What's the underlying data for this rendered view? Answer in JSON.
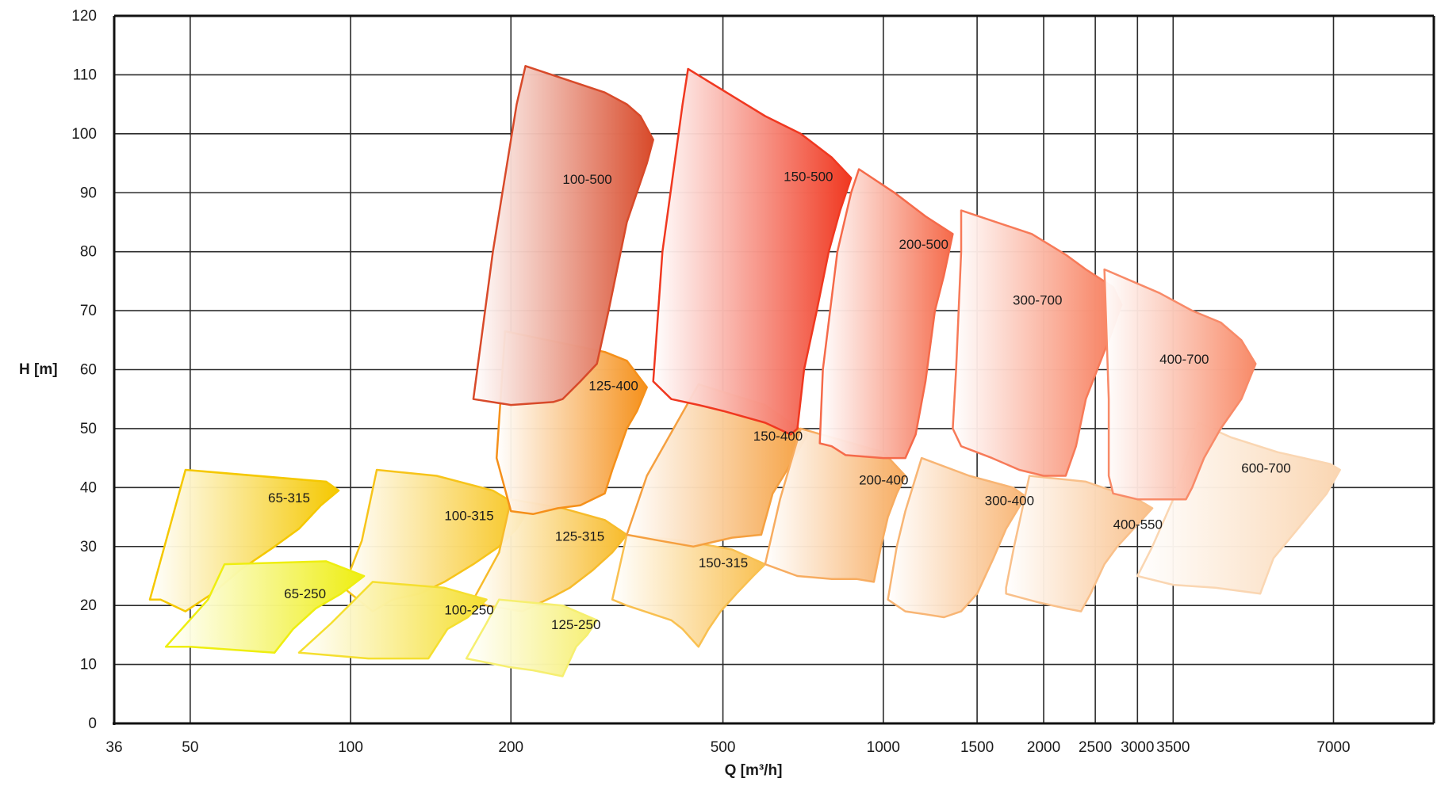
{
  "chart_data": {
    "type": "area",
    "xlabel": "Q [m³/h]",
    "ylabel": "H [m]",
    "x_scale": "log",
    "xlim": [
      36,
      10800
    ],
    "ylim": [
      0,
      120
    ],
    "x_ticks": [
      36,
      50,
      100,
      200,
      500,
      1000,
      1500,
      2000,
      2500,
      3000,
      3500,
      7000
    ],
    "y_ticks": [
      0,
      10,
      20,
      30,
      40,
      50,
      60,
      70,
      80,
      90,
      100,
      110,
      120
    ],
    "grid": true,
    "regions": [
      {
        "name": "65-315",
        "color": "#f5c800",
        "label_at": [
          70,
          37.5
        ],
        "outline": [
          [
            49,
            43
          ],
          [
            90,
            41
          ],
          [
            95,
            39.5
          ],
          [
            88,
            37
          ],
          [
            80,
            33
          ],
          [
            72,
            30
          ],
          [
            62,
            26
          ],
          [
            55,
            22
          ],
          [
            49,
            19
          ],
          [
            44,
            21
          ],
          [
            42,
            21
          ]
        ]
      },
      {
        "name": "100-315",
        "color": "#f7c41a",
        "label_at": [
          150,
          34.5
        ],
        "outline": [
          [
            112,
            43
          ],
          [
            145,
            42
          ],
          [
            185,
            39.5
          ],
          [
            215,
            36
          ],
          [
            205,
            33
          ],
          [
            190,
            30
          ],
          [
            170,
            27
          ],
          [
            150,
            24
          ],
          [
            135,
            22
          ],
          [
            120,
            21
          ],
          [
            110,
            19
          ],
          [
            97,
            23
          ],
          [
            105,
            31
          ]
        ]
      },
      {
        "name": "125-315",
        "color": "#f7bb2a",
        "label_at": [
          242,
          31
        ],
        "outline": [
          [
            200,
            38
          ],
          [
            250,
            36.5
          ],
          [
            300,
            34.5
          ],
          [
            330,
            32
          ],
          [
            310,
            29
          ],
          [
            285,
            26
          ],
          [
            258,
            23
          ],
          [
            240,
            21.5
          ],
          [
            210,
            19
          ],
          [
            180,
            20
          ],
          [
            170,
            21
          ],
          [
            190,
            29
          ]
        ]
      },
      {
        "name": "150-315",
        "color": "#f9c050",
        "label_at": [
          450,
          26.5
        ],
        "outline": [
          [
            330,
            32
          ],
          [
            420,
            31
          ],
          [
            520,
            29.5
          ],
          [
            600,
            27
          ],
          [
            570,
            25
          ],
          [
            530,
            22
          ],
          [
            495,
            19
          ],
          [
            470,
            16
          ],
          [
            450,
            13
          ],
          [
            420,
            16
          ],
          [
            400,
            17.5
          ],
          [
            330,
            20
          ],
          [
            310,
            21
          ]
        ]
      },
      {
        "name": "65-250",
        "color": "#eeee10",
        "label_at": [
          75,
          21.2
        ],
        "outline": [
          [
            58,
            27
          ],
          [
            90,
            27.5
          ],
          [
            106,
            25
          ],
          [
            96,
            22
          ],
          [
            86,
            19.5
          ],
          [
            78,
            16
          ],
          [
            72,
            12
          ],
          [
            60,
            12.5
          ],
          [
            50,
            13
          ],
          [
            45,
            13
          ],
          [
            54,
            21
          ]
        ]
      },
      {
        "name": "100-250",
        "color": "#f5df30",
        "label_at": [
          150,
          18.5
        ],
        "outline": [
          [
            110,
            24
          ],
          [
            150,
            23
          ],
          [
            180,
            21
          ],
          [
            166,
            18
          ],
          [
            152,
            16
          ],
          [
            140,
            11
          ],
          [
            120,
            11
          ],
          [
            108,
            11
          ],
          [
            80,
            12
          ],
          [
            92,
            17
          ]
        ]
      },
      {
        "name": "125-250",
        "color": "#f6ef70",
        "label_at": [
          238,
          16
        ],
        "outline": [
          [
            190,
            21
          ],
          [
            250,
            20
          ],
          [
            290,
            17.5
          ],
          [
            278,
            15
          ],
          [
            265,
            13
          ],
          [
            250,
            8
          ],
          [
            220,
            9
          ],
          [
            200,
            9.5
          ],
          [
            165,
            11
          ],
          [
            180,
            17
          ]
        ]
      },
      {
        "name": "125-400",
        "color": "#f5901a",
        "label_at": [
          280,
          56.5
        ],
        "outline": [
          [
            195,
            66.5
          ],
          [
            300,
            63
          ],
          [
            330,
            61.5
          ],
          [
            360,
            57
          ],
          [
            345,
            53
          ],
          [
            330,
            50
          ],
          [
            310,
            43
          ],
          [
            300,
            39
          ],
          [
            270,
            37
          ],
          [
            245,
            36.5
          ],
          [
            220,
            35.5
          ],
          [
            200,
            36
          ],
          [
            188,
            45
          ]
        ]
      },
      {
        "name": "150-400",
        "color": "#f5a040",
        "label_at": [
          570,
          48
        ],
        "outline": [
          [
            450,
            57.5
          ],
          [
            600,
            54
          ],
          [
            720,
            49
          ],
          [
            700,
            47
          ],
          [
            650,
            42
          ],
          [
            620,
            39
          ],
          [
            590,
            32
          ],
          [
            520,
            31.5
          ],
          [
            440,
            30
          ],
          [
            380,
            31
          ],
          [
            330,
            32
          ],
          [
            360,
            42
          ]
        ]
      },
      {
        "name": "200-400",
        "color": "#f7ac60",
        "label_at": [
          900,
          40.5
        ],
        "outline": [
          [
            700,
            50
          ],
          [
            1000,
            46
          ],
          [
            1100,
            42
          ],
          [
            1060,
            39
          ],
          [
            1020,
            35
          ],
          [
            990,
            30
          ],
          [
            960,
            24
          ],
          [
            890,
            24.5
          ],
          [
            800,
            24.5
          ],
          [
            690,
            25
          ],
          [
            600,
            27
          ],
          [
            640,
            38
          ]
        ]
      },
      {
        "name": "300-400",
        "color": "#f8b574",
        "label_at": [
          1550,
          37
        ],
        "outline": [
          [
            1180,
            45
          ],
          [
            1450,
            42
          ],
          [
            1750,
            40
          ],
          [
            1850,
            38.5
          ],
          [
            1780,
            36
          ],
          [
            1700,
            33
          ],
          [
            1610,
            28
          ],
          [
            1500,
            22
          ],
          [
            1400,
            19
          ],
          [
            1300,
            18
          ],
          [
            1200,
            18.5
          ],
          [
            1100,
            19
          ],
          [
            1020,
            21
          ],
          [
            1060,
            30
          ],
          [
            1100,
            36
          ]
        ]
      },
      {
        "name": "400-550",
        "color": "#f9c08a",
        "label_at": [
          2700,
          33
        ],
        "outline": [
          [
            1880,
            42
          ],
          [
            2400,
            41
          ],
          [
            3000,
            38
          ],
          [
            3200,
            36.5
          ],
          [
            2950,
            33
          ],
          [
            2750,
            30
          ],
          [
            2600,
            27
          ],
          [
            2450,
            22
          ],
          [
            2350,
            19
          ],
          [
            2200,
            19.5
          ],
          [
            1960,
            20.5
          ],
          [
            1700,
            22
          ],
          [
            1700,
            23
          ],
          [
            1760,
            30
          ],
          [
            1820,
            36
          ]
        ]
      },
      {
        "name": "600-700",
        "color": "#fad6b2",
        "label_at": [
          4700,
          42.5
        ],
        "outline": [
          [
            3900,
            51
          ],
          [
            4500,
            48.5
          ],
          [
            5500,
            46
          ],
          [
            6900,
            44
          ],
          [
            7200,
            43
          ],
          [
            6800,
            39
          ],
          [
            6000,
            33
          ],
          [
            5400,
            28
          ],
          [
            5100,
            22
          ],
          [
            4200,
            23
          ],
          [
            3500,
            23.5
          ],
          [
            3000,
            25
          ],
          [
            3200,
            30
          ],
          [
            3500,
            38
          ]
        ]
      },
      {
        "name": "100-500",
        "color": "#d84a2a",
        "label_at": [
          250,
          91.5
        ],
        "outline": [
          [
            213,
            111.5
          ],
          [
            300,
            107
          ],
          [
            330,
            105
          ],
          [
            350,
            103
          ],
          [
            370,
            99
          ],
          [
            360,
            95
          ],
          [
            330,
            85
          ],
          [
            305,
            70
          ],
          [
            290,
            61
          ],
          [
            270,
            58
          ],
          [
            250,
            55
          ],
          [
            240,
            54.5
          ],
          [
            200,
            54
          ],
          [
            170,
            55
          ],
          [
            185,
            80
          ],
          [
            205,
            105
          ]
        ]
      },
      {
        "name": "150-500",
        "color": "#f03820",
        "label_at": [
          650,
          92
        ],
        "outline": [
          [
            430,
            111
          ],
          [
            600,
            103
          ],
          [
            700,
            100
          ],
          [
            800,
            96
          ],
          [
            870,
            92.5
          ],
          [
            830,
            87
          ],
          [
            790,
            80
          ],
          [
            750,
            70
          ],
          [
            710,
            60
          ],
          [
            690,
            50
          ],
          [
            670,
            49
          ],
          [
            600,
            51
          ],
          [
            500,
            53
          ],
          [
            450,
            54
          ],
          [
            400,
            55
          ],
          [
            370,
            58
          ],
          [
            385,
            80
          ],
          [
            420,
            105
          ]
        ]
      },
      {
        "name": "200-500",
        "color": "#f56a4a",
        "label_at": [
          1070,
          80.5
        ],
        "outline": [
          [
            900,
            94
          ],
          [
            1050,
            90
          ],
          [
            1200,
            86
          ],
          [
            1350,
            83
          ],
          [
            1300,
            76
          ],
          [
            1250,
            70
          ],
          [
            1200,
            58
          ],
          [
            1150,
            49
          ],
          [
            1100,
            45
          ],
          [
            1000,
            45
          ],
          [
            850,
            45.5
          ],
          [
            800,
            47
          ],
          [
            760,
            47.5
          ],
          [
            770,
            60
          ],
          [
            820,
            80
          ],
          [
            870,
            90
          ]
        ]
      },
      {
        "name": "300-700",
        "color": "#f77a58",
        "label_at": [
          1750,
          71
        ],
        "outline": [
          [
            1400,
            87
          ],
          [
            1900,
            83
          ],
          [
            2200,
            79.5
          ],
          [
            2400,
            77
          ],
          [
            2700,
            74
          ],
          [
            2800,
            71
          ],
          [
            2650,
            65
          ],
          [
            2400,
            55
          ],
          [
            2300,
            47
          ],
          [
            2200,
            42
          ],
          [
            2000,
            42
          ],
          [
            1800,
            43
          ],
          [
            1600,
            45
          ],
          [
            1400,
            47
          ],
          [
            1350,
            50
          ],
          [
            1370,
            60
          ],
          [
            1400,
            80
          ]
        ]
      },
      {
        "name": "400-700",
        "color": "#f88a68",
        "label_at": [
          3300,
          61
        ],
        "outline": [
          [
            2600,
            77
          ],
          [
            3300,
            73
          ],
          [
            3800,
            70
          ],
          [
            4300,
            68
          ],
          [
            4700,
            65
          ],
          [
            5000,
            61
          ],
          [
            4700,
            55
          ],
          [
            4300,
            50
          ],
          [
            4000,
            45
          ],
          [
            3800,
            40
          ],
          [
            3700,
            38
          ],
          [
            3400,
            38
          ],
          [
            3000,
            38
          ],
          [
            2700,
            39
          ],
          [
            2650,
            42
          ],
          [
            2650,
            55
          ]
        ]
      }
    ]
  }
}
